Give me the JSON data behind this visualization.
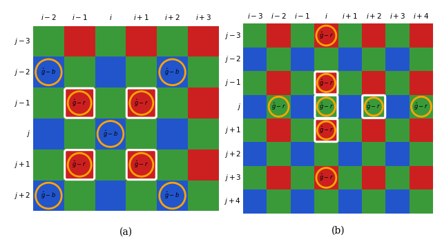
{
  "panel_a": {
    "col_labels": [
      "i-2",
      "i-1",
      "i",
      "i+1",
      "i+2",
      "i+3"
    ],
    "row_labels": [
      "j-3",
      "j-2",
      "j-1",
      "j",
      "j+1",
      "j+2"
    ],
    "grid": [
      [
        "G",
        "R",
        "G",
        "R",
        "G",
        "R"
      ],
      [
        "B",
        "G",
        "B",
        "G",
        "B",
        "G"
      ],
      [
        "G",
        "R",
        "G",
        "R",
        "G",
        "R"
      ],
      [
        "B",
        "G",
        "B",
        "G",
        "B",
        "G"
      ],
      [
        "G",
        "R",
        "G",
        "R",
        "G",
        "R"
      ],
      [
        "B",
        "G",
        "B",
        "G",
        "B",
        "G"
      ]
    ],
    "circles": [
      {
        "row": 1,
        "col": 0,
        "type": "orange_only",
        "label": "$\\hat{g}-b$"
      },
      {
        "row": 1,
        "col": 4,
        "type": "orange_only",
        "label": "$\\hat{g}-b$"
      },
      {
        "row": 2,
        "col": 1,
        "type": "white_orange",
        "label": "$\\hat{g}-r$"
      },
      {
        "row": 2,
        "col": 3,
        "type": "white_orange",
        "label": "$\\hat{g}-r$"
      },
      {
        "row": 3,
        "col": 2,
        "type": "orange_only",
        "label": "$\\hat{g}-b$"
      },
      {
        "row": 4,
        "col": 1,
        "type": "white_orange",
        "label": "$\\hat{g}-r$"
      },
      {
        "row": 4,
        "col": 3,
        "type": "white_orange",
        "label": "$\\hat{g}-r$"
      },
      {
        "row": 5,
        "col": 0,
        "type": "orange_only",
        "label": "$\\hat{g}-b$"
      },
      {
        "row": 5,
        "col": 4,
        "type": "orange_only",
        "label": "$\\hat{g}-b$"
      }
    ],
    "caption": "(a)"
  },
  "panel_b": {
    "col_labels": [
      "i-3",
      "i-2",
      "i-1",
      "i",
      "i+1",
      "i+2",
      "i+3",
      "i+4"
    ],
    "row_labels": [
      "j-3",
      "j-2",
      "j-1",
      "j",
      "j+1",
      "j+2",
      "j+3",
      "j+4"
    ],
    "grid": [
      [
        "G",
        "R",
        "G",
        "R",
        "G",
        "R",
        "G",
        "R"
      ],
      [
        "B",
        "G",
        "B",
        "G",
        "B",
        "G",
        "B",
        "G"
      ],
      [
        "G",
        "R",
        "G",
        "R",
        "G",
        "R",
        "G",
        "R"
      ],
      [
        "B",
        "G",
        "B",
        "G",
        "B",
        "G",
        "B",
        "G"
      ],
      [
        "G",
        "R",
        "G",
        "R",
        "G",
        "R",
        "G",
        "R"
      ],
      [
        "B",
        "G",
        "B",
        "G",
        "B",
        "G",
        "B",
        "G"
      ],
      [
        "G",
        "R",
        "G",
        "R",
        "G",
        "R",
        "G",
        "R"
      ],
      [
        "B",
        "G",
        "B",
        "G",
        "B",
        "G",
        "B",
        "G"
      ]
    ],
    "circles": [
      {
        "row": 0,
        "col": 3,
        "type": "orange_only",
        "label": "$\\hat{g}-r$"
      },
      {
        "row": 2,
        "col": 3,
        "type": "white_orange",
        "label": "$\\hat{g}-r$"
      },
      {
        "row": 3,
        "col": 1,
        "type": "orange_only",
        "label": "$\\hat{g}-r$"
      },
      {
        "row": 3,
        "col": 3,
        "type": "white_orange",
        "label": "$\\hat{g}-r$"
      },
      {
        "row": 3,
        "col": 5,
        "type": "white_orange",
        "label": "$\\hat{g}-r$"
      },
      {
        "row": 3,
        "col": 7,
        "type": "orange_only",
        "label": "$\\hat{g}-r$"
      },
      {
        "row": 4,
        "col": 3,
        "type": "white_orange",
        "label": "$\\hat{g}-r$"
      },
      {
        "row": 6,
        "col": 3,
        "type": "orange_only",
        "label": "$\\hat{g}-r$"
      }
    ],
    "caption": "(b)"
  },
  "colors": {
    "G": "#3a9a3a",
    "R": "#cc2020",
    "B": "#2255cc"
  },
  "orange": "#ffa500",
  "white": "#ffffff",
  "label_fontsize": 6,
  "caption_fontsize": 10,
  "tick_fontsize": 7.5
}
